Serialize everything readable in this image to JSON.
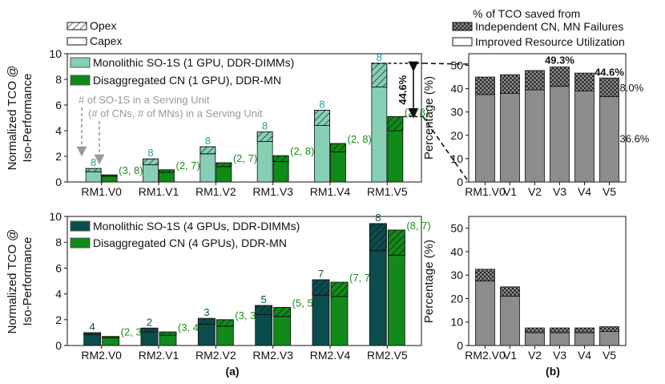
{
  "top_legend": {
    "opex": "Opex",
    "capex": "Capex"
  },
  "right_legend": {
    "title": "% of TCO saved from",
    "independent": "Independent CN, MN Failures",
    "improved": "Improved Resource Utilization"
  },
  "panel_labels": {
    "a": "(a)",
    "b": "(b)"
  },
  "colors": {
    "mono_light": "#86cfb4",
    "disagg_light": "#0f8a17",
    "mono_dark": "#0b4c4c",
    "disagg_dark": "#118a1a",
    "gray": "#8c8c8c",
    "teal_label": "#1f9fa0",
    "green_label": "#1b8a1b"
  },
  "chart_data": [
    {
      "id": "top-left",
      "type": "bar",
      "title": "",
      "xlabel": "",
      "ylabel": "Normalized TCO @\nIso-Performance",
      "ylabel_lines": [
        "Normalized TCO @",
        "Iso-Performance"
      ],
      "ylim": [
        0,
        10
      ],
      "yticks": [
        "0",
        "2",
        "4",
        "6",
        "8",
        "10"
      ],
      "categories": [
        "RM1.V0",
        "RM1.V1",
        "RM1.V2",
        "RM1.V3",
        "RM1.V4",
        "RM1.V5"
      ],
      "legend": [
        "Monolithic SO-1S (1 GPU, DDR-DIMMs)",
        "Disaggregated CN (1 GPU), DDR-MN"
      ],
      "series": [
        {
          "name": "Monolithic SO-1S (1 GPU, DDR-DIMMs)",
          "capex": [
            0.8,
            1.35,
            2.2,
            3.15,
            4.4,
            7.4
          ],
          "opex": [
            0.25,
            0.45,
            0.55,
            0.75,
            1.2,
            1.85
          ],
          "labels": [
            "8",
            "8",
            "8",
            "8",
            "8",
            "8"
          ]
        },
        {
          "name": "Disaggregated CN (1 GPU), DDR-MN",
          "capex": [
            0.45,
            0.75,
            1.2,
            1.6,
            2.35,
            4.0
          ],
          "opex": [
            0.1,
            0.2,
            0.3,
            0.45,
            0.65,
            1.1
          ],
          "labels": [
            "(3, 8)",
            "(2, 7)",
            "(2, 7)",
            "(2, 8)",
            "(2, 8)",
            "(2, 8)"
          ]
        }
      ],
      "annotation_lines": [
        "# of SO-1S in a Serving Unit",
        "(# of CNs, # of MNs) in a Serving Unit"
      ],
      "bracket_label": "44.6%"
    },
    {
      "id": "bottom-left",
      "type": "bar",
      "title": "",
      "xlabel": "",
      "ylabel": "Normalized TCO @\nIso-Performance",
      "ylabel_lines": [
        "Normalized TCO @",
        "Iso-Performance"
      ],
      "ylim": [
        0,
        10
      ],
      "yticks": [
        "0",
        "2",
        "4",
        "6",
        "8",
        "10"
      ],
      "categories": [
        "RM2.V0",
        "RM2.V1",
        "RM2.V2",
        "RM2.V3",
        "RM2.V4",
        "RM2.V5"
      ],
      "legend": [
        "Monolithic SO-1S (4 GPUs, DDR-DIMMs)",
        "Disaggregated CN (4 GPUs), DDR-MN"
      ],
      "series": [
        {
          "name": "Monolithic SO-1S (4 GPUs, DDR-DIMMs)",
          "capex": [
            0.85,
            1.05,
            1.65,
            2.4,
            3.9,
            7.35
          ],
          "opex": [
            0.15,
            0.3,
            0.45,
            0.7,
            1.2,
            2.1
          ],
          "labels": [
            "4",
            "2",
            "3",
            "5",
            "7",
            "8"
          ]
        },
        {
          "name": "Disaggregated CN (4 GPUs), DDR-MN",
          "capex": [
            0.6,
            0.8,
            1.5,
            2.25,
            3.8,
            7.0
          ],
          "opex": [
            0.1,
            0.25,
            0.5,
            0.7,
            1.1,
            1.95
          ],
          "labels": [
            "(2, 3)",
            "(3, 4)",
            "(3, 3)",
            "(5, 5)",
            "(7, 7)",
            "(8, 7)"
          ]
        }
      ]
    },
    {
      "id": "top-right",
      "type": "bar",
      "title": "",
      "xlabel": "",
      "ylabel": "Percentage (%)",
      "ylim": [
        0,
        55
      ],
      "yticks": [
        "0",
        "10",
        "20",
        "30",
        "40",
        "50"
      ],
      "categories": [
        "RM1.V0",
        "V1",
        "V2",
        "V3",
        "V4",
        "V5"
      ],
      "series": [
        {
          "name": "Improved Resource Utilization",
          "values": [
            37.5,
            38,
            39.5,
            41,
            39,
            36.6
          ]
        },
        {
          "name": "Independent CN, MN Failures",
          "values": [
            7.5,
            8,
            8.3,
            8.3,
            7.7,
            8.0
          ]
        }
      ],
      "value_labels": {
        "top": [
          "49.3%",
          "44.6%"
        ],
        "independent": "8.0%",
        "improved": "36.6%"
      }
    },
    {
      "id": "bottom-right",
      "type": "bar",
      "title": "",
      "xlabel": "",
      "ylabel": "Percentage (%)",
      "ylim": [
        0,
        55
      ],
      "yticks": [
        "0",
        "10",
        "20",
        "30",
        "40",
        "50"
      ],
      "categories": [
        "RM2.V0",
        "V1",
        "V2",
        "V3",
        "V4",
        "V5"
      ],
      "series": [
        {
          "name": "Improved Resource Utilization",
          "values": [
            27.5,
            21,
            5.5,
            5.5,
            5.5,
            6
          ]
        },
        {
          "name": "Independent CN, MN Failures",
          "values": [
            5,
            4,
            2,
            2,
            2,
            2
          ]
        }
      ]
    }
  ]
}
